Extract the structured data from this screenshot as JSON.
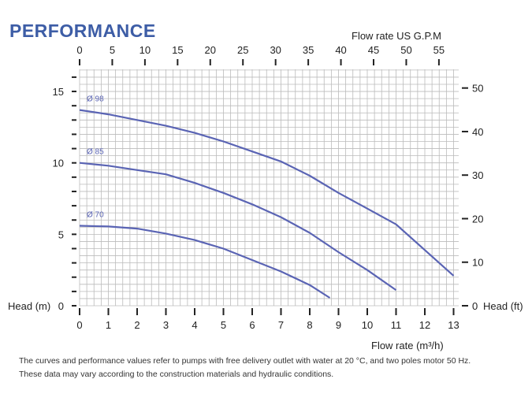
{
  "title": "PERFORMANCE",
  "notes": [
    "The curves and performance values refer to pumps with free delivery outlet with water at 20 °C, and two poles motor 50 Hz.",
    "These data may vary according to the construction materials and hydraulic conditions."
  ],
  "chart_data": {
    "type": "line",
    "xlabel": "Flow rate  (m³/h)",
    "x2label": "Flow rate US  G.P.M",
    "ylabel": "Head (m)",
    "y2label": "Head (ft)",
    "xlim": [
      0,
      13.2
    ],
    "ylim": [
      0,
      16.5
    ],
    "xticks": [
      0,
      1,
      2,
      3,
      4,
      5,
      6,
      7,
      8,
      9,
      10,
      11,
      12,
      13
    ],
    "x2ticks": [
      0,
      5,
      10,
      15,
      20,
      25,
      30,
      35,
      40,
      45,
      50,
      55
    ],
    "yticks": [
      0,
      5,
      10,
      15
    ],
    "y2ticks": [
      0,
      10,
      20,
      30,
      40,
      50
    ],
    "grid": true,
    "color": "#5a64b4",
    "series": [
      {
        "name": "Ø 98",
        "x": [
          0,
          1,
          2,
          3,
          4,
          5,
          6,
          7,
          8,
          9,
          10,
          11,
          12,
          13
        ],
        "y": [
          13.7,
          13.4,
          13.0,
          12.6,
          12.1,
          11.5,
          10.8,
          10.1,
          9.1,
          7.9,
          6.8,
          5.7,
          3.9,
          2.1
        ]
      },
      {
        "name": "Ø 85",
        "x": [
          0,
          1,
          2,
          3,
          4,
          5,
          6,
          7,
          8,
          9,
          10,
          11
        ],
        "y": [
          10.0,
          9.8,
          9.5,
          9.2,
          8.6,
          7.9,
          7.1,
          6.2,
          5.1,
          3.75,
          2.5,
          1.1
        ]
      },
      {
        "name": "Ø 70",
        "x": [
          0,
          1,
          2,
          3,
          4,
          5,
          6,
          7,
          8,
          8.7
        ],
        "y": [
          5.6,
          5.55,
          5.4,
          5.05,
          4.6,
          4.0,
          3.2,
          2.4,
          1.45,
          0.55
        ]
      }
    ]
  }
}
